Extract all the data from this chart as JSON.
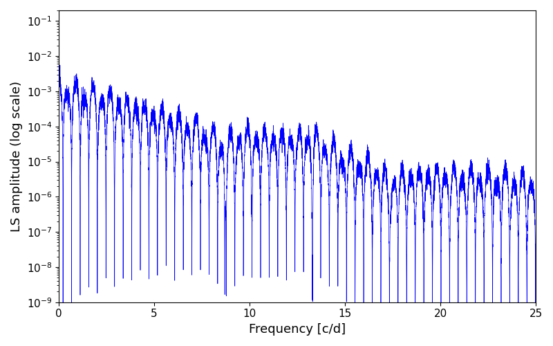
{
  "xlabel": "Frequency [c/d]",
  "ylabel": "LS amplitude (log scale)",
  "title": "",
  "line_color": "#0000ff",
  "line_width": 0.5,
  "xlim": [
    0,
    25
  ],
  "ylim": [
    1e-09,
    0.2
  ],
  "freq_max": 25.0,
  "n_points": 8000,
  "background_color": "#ffffff",
  "figsize": [
    8.0,
    5.0
  ],
  "dpi": 100
}
